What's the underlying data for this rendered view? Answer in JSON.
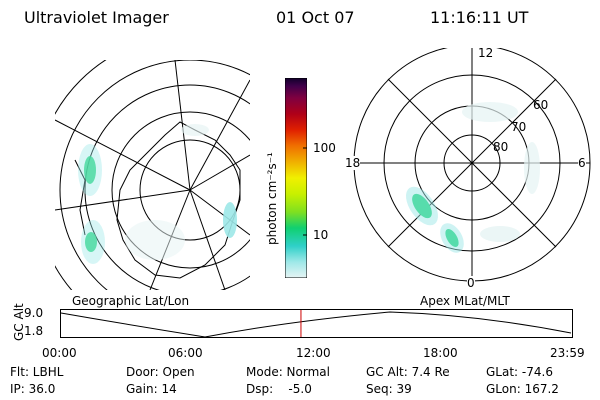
{
  "header": {
    "instrument": "Ultraviolet Imager",
    "date": "01 Oct 07",
    "time": "11:16:11 UT"
  },
  "panels": {
    "geographic_label": "Geographic Lat/Lon",
    "apex_label": "Apex MLat/MLT",
    "apex_rings": {
      "lat_60": "60",
      "lat_70": "70",
      "lat_80": "80"
    },
    "apex_mlt": {
      "top": "12",
      "left": "18",
      "right": "6",
      "bottom": "0"
    }
  },
  "colorbar": {
    "unit_label": "photon cm⁻²s⁻¹",
    "tick_100": "100",
    "tick_10": "10",
    "colors": [
      "#e6f4f4",
      "#9ee8e8",
      "#2fd0c8",
      "#10d070",
      "#7fe020",
      "#c8f000",
      "#f0f000",
      "#f0b000",
      "#f07000",
      "#e02000",
      "#b00018",
      "#800040",
      "#40004a",
      "#10002a"
    ]
  },
  "gc_alt_plot": {
    "ylabel": "GC Alt",
    "ytick_top": "9.0",
    "ytick_bottom": "1.8",
    "xticks": [
      "00:00",
      "06:00",
      "12:00",
      "18:00",
      "23:59"
    ],
    "current_marker_hours": 11.27,
    "marker_color": "#cc0000"
  },
  "footer": {
    "filter": "Flt: LBHL",
    "ip": "IP: 36.0",
    "door": "Door: Open",
    "gain": "Gain: 14",
    "mode": "Mode: Normal",
    "dsp": "Dsp:    -5.0",
    "gc_alt": "GC Alt: 7.4 Re",
    "seq": "Seq: 39",
    "glat": "GLat: -74.6",
    "glon": "GLon: 167.2"
  }
}
